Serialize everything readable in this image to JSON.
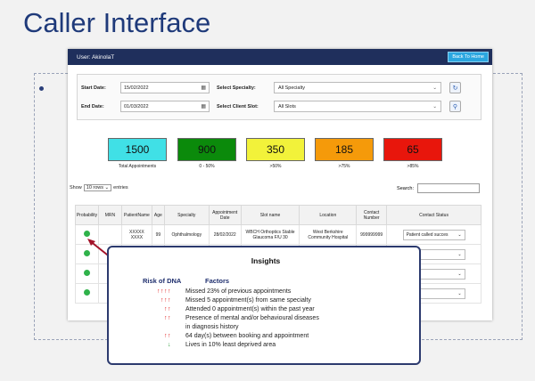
{
  "slide": {
    "title": "Caller Interface"
  },
  "app": {
    "user_label": "User: AkinolaT",
    "back_button": "Back To Home",
    "filters": {
      "start_label": "Start Date:",
      "start_value": "15/02/2022",
      "end_label": "End Date:",
      "end_value": "01/03/2022",
      "specialty_label": "Select Specialty:",
      "specialty_value": "All Specialty",
      "slot_label": "Select Client Slot:",
      "slot_value": "All Slots"
    },
    "cards": [
      {
        "value": "1500",
        "label": "Total Appointments",
        "color": "#40e0e6"
      },
      {
        "value": "900",
        "label": "0 - 50%",
        "color": "#0b8a0b"
      },
      {
        "value": "350",
        "label": ">50%",
        "color": "#f2f23a"
      },
      {
        "value": "185",
        "label": ">75%",
        "color": "#f59a0a"
      },
      {
        "value": "65",
        "label": ">85%",
        "color": "#e8160c"
      }
    ],
    "entries": {
      "show": "Show",
      "rows": "10 rows",
      "suffix": "entries",
      "search_label": "Search:"
    },
    "table": {
      "headers": [
        "Probability",
        "MRN",
        "PatientName",
        "Age",
        "Specialty",
        "Appointment Date",
        "Slot name",
        "Location",
        "Contact Number",
        "Contact Status"
      ],
      "row1": {
        "name_line1": "XXXXX",
        "name_line2": "XXXX",
        "age": "99",
        "specialty": "Ophthalmology",
        "date": "28/02/2022",
        "slot_line1": "WBCH Orthoptics Stable",
        "slot_line2": "Glaucoma F/U 30",
        "loc_line1": "West Berkshire",
        "loc_line2": "Community Hospital",
        "contact": "999999999",
        "status": "Patient called succes"
      },
      "status_partial": "tatus"
    }
  },
  "insights": {
    "title": "Insights",
    "risk_header": "Risk of DNA",
    "factors_header": "Factors",
    "rows": [
      {
        "arrows": "↑↑↑↑",
        "text": "Missed 23% of previous appointments",
        "color": "#e02020"
      },
      {
        "arrows": "↑↑↑",
        "text": "Missed 5 appointment(s) from same specialty",
        "color": "#e02020"
      },
      {
        "arrows": "↑↑",
        "text": "Attended 0 appointment(s) within the past year",
        "color": "#e02020"
      },
      {
        "arrows": "↑↑",
        "text": "Presence of mental and/or behavioural diseases",
        "color": "#e02020"
      },
      {
        "arrows": "",
        "text": "in diagnosis history",
        "color": "#e02020"
      },
      {
        "arrows": "↑↑",
        "text": "64 day(s) between booking and appointment",
        "color": "#e02020"
      },
      {
        "arrows": "↓",
        "text": "Lives in 10% least deprived area",
        "color": "#2a9d3a"
      }
    ]
  }
}
